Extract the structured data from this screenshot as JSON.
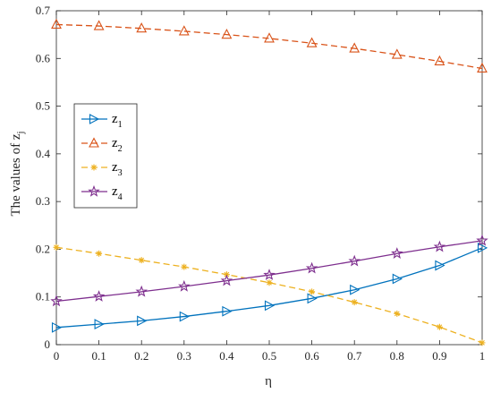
{
  "chart_data": {
    "type": "line",
    "xlabel": "η",
    "ylabel": "The values of z",
    "ylabel_sub": "j",
    "xlim": [
      0,
      1
    ],
    "ylim": [
      0,
      0.7
    ],
    "xticks": [
      "0",
      "0.1",
      "0.2",
      "0.3",
      "0.4",
      "0.5",
      "0.6",
      "0.7",
      "0.8",
      "0.9",
      "1"
    ],
    "yticks": [
      "0",
      "0.1",
      "0.2",
      "0.3",
      "0.4",
      "0.5",
      "0.6",
      "0.7"
    ],
    "grid": false,
    "legend_position": "left",
    "x": [
      0,
      0.1,
      0.2,
      0.3,
      0.4,
      0.5,
      0.6,
      0.7,
      0.8,
      0.9,
      1
    ],
    "series": [
      {
        "name": "z",
        "sub": "1",
        "color": "#0072BD",
        "dash": "solid",
        "marker": "triangle-right",
        "values": [
          0.036,
          0.043,
          0.05,
          0.059,
          0.07,
          0.082,
          0.097,
          0.115,
          0.138,
          0.166,
          0.203
        ]
      },
      {
        "name": "z",
        "sub": "2",
        "color": "#D95319",
        "dash": "dashed",
        "marker": "triangle-up",
        "values": [
          0.671,
          0.668,
          0.663,
          0.657,
          0.65,
          0.642,
          0.632,
          0.621,
          0.608,
          0.594,
          0.579
        ]
      },
      {
        "name": "z",
        "sub": "3",
        "color": "#EDB120",
        "dash": "dashed",
        "marker": "asterisk",
        "values": [
          0.204,
          0.191,
          0.177,
          0.163,
          0.147,
          0.13,
          0.111,
          0.089,
          0.065,
          0.037,
          0.004
        ]
      },
      {
        "name": "z",
        "sub": "4",
        "color": "#7E2F8E",
        "dash": "solid",
        "marker": "star",
        "values": [
          0.091,
          0.101,
          0.111,
          0.122,
          0.134,
          0.146,
          0.16,
          0.175,
          0.191,
          0.205,
          0.218
        ]
      }
    ]
  }
}
